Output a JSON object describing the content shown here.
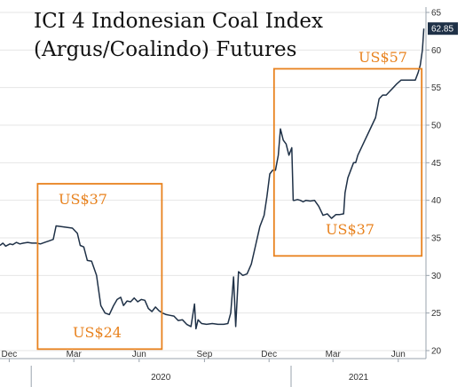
{
  "chart_data": {
    "type": "line",
    "title_lines": [
      "ICI 4 Indonesian Coal Index",
      "(Argus/Coalindo) Futures"
    ],
    "ylim": [
      20,
      65
    ],
    "yticks": [
      20,
      25,
      30,
      35,
      40,
      45,
      50,
      55,
      60,
      65
    ],
    "xlim": [
      "2019-11-18",
      "2021-07-10"
    ],
    "month_ticks": [
      {
        "date": "2019-12-01",
        "label": "Dec"
      },
      {
        "date": "2020-03-01",
        "label": "Mar"
      },
      {
        "date": "2020-06-01",
        "label": "Jun"
      },
      {
        "date": "2020-09-01",
        "label": "Sep"
      },
      {
        "date": "2020-12-01",
        "label": "Dec"
      },
      {
        "date": "2021-03-01",
        "label": "Mar"
      },
      {
        "date": "2021-06-01",
        "label": "Jun"
      }
    ],
    "year_labels": [
      {
        "label": "2020",
        "start": "2020-01-01",
        "end": "2020-12-31"
      },
      {
        "label": "2021",
        "start": "2021-01-01",
        "end": "2021-07-10"
      }
    ],
    "last_value": "62.85",
    "line_color": "#1f3147",
    "annotation_color": "#e8821e",
    "series": [
      {
        "x": [
          "2019-11-18",
          "2019-11-22",
          "2019-11-26",
          "2019-12-02",
          "2019-12-06",
          "2019-12-11",
          "2019-12-16",
          "2019-12-21",
          "2019-12-27",
          "2020-01-02",
          "2020-01-08",
          "2020-01-14",
          "2020-01-20",
          "2020-01-26",
          "2020-02-01",
          "2020-02-05",
          "2020-02-12",
          "2020-02-20",
          "2020-02-28",
          "2020-03-06",
          "2020-03-10",
          "2020-03-15",
          "2020-03-20",
          "2020-03-26",
          "2020-04-02",
          "2020-04-08",
          "2020-04-14",
          "2020-04-20",
          "2020-04-26",
          "2020-05-01",
          "2020-05-06",
          "2020-05-10",
          "2020-05-15",
          "2020-05-20",
          "2020-05-25",
          "2020-05-30",
          "2020-06-04",
          "2020-06-09",
          "2020-06-14",
          "2020-06-19",
          "2020-06-24",
          "2020-06-29",
          "2020-07-04",
          "2020-07-09",
          "2020-07-14",
          "2020-07-20",
          "2020-07-26",
          "2020-08-01",
          "2020-08-07",
          "2020-08-13",
          "2020-08-18",
          "2020-08-20",
          "2020-08-23",
          "2020-08-28",
          "2020-09-04",
          "2020-09-12",
          "2020-09-20",
          "2020-09-28",
          "2020-10-04",
          "2020-10-08",
          "2020-10-12",
          "2020-10-15",
          "2020-10-19",
          "2020-10-25",
          "2020-10-31",
          "2020-11-06",
          "2020-11-12",
          "2020-11-18",
          "2020-11-24",
          "2020-11-28",
          "2020-12-02",
          "2020-12-06",
          "2020-12-10",
          "2020-12-14",
          "2020-12-17",
          "2020-12-21",
          "2020-12-25",
          "2020-12-29",
          "2021-01-02",
          "2021-01-04",
          "2021-01-06",
          "2021-01-10",
          "2021-01-14",
          "2021-01-18",
          "2021-01-22",
          "2021-01-28",
          "2021-02-03",
          "2021-02-09",
          "2021-02-15",
          "2021-02-21",
          "2021-02-27",
          "2021-03-05",
          "2021-03-10",
          "2021-03-16",
          "2021-03-18",
          "2021-03-20",
          "2021-03-22",
          "2021-03-26",
          "2021-03-30",
          "2021-04-02",
          "2021-04-05",
          "2021-04-10",
          "2021-04-15",
          "2021-04-20",
          "2021-04-25",
          "2021-04-30",
          "2021-05-05",
          "2021-05-10",
          "2021-05-15",
          "2021-05-20",
          "2021-05-25",
          "2021-05-30",
          "2021-06-05",
          "2021-06-10",
          "2021-06-15",
          "2021-06-20",
          "2021-06-25",
          "2021-06-29",
          "2021-07-02",
          "2021-07-05",
          "2021-07-07"
        ],
        "y": [
          34.0,
          34.3,
          33.9,
          34.2,
          34.1,
          34.4,
          34.2,
          34.3,
          34.4,
          34.3,
          34.3,
          34.2,
          34.4,
          34.6,
          34.8,
          36.6,
          36.5,
          36.4,
          36.3,
          35.6,
          34.0,
          33.8,
          32.0,
          31.9,
          30.0,
          26.0,
          25.0,
          24.8,
          26.0,
          26.8,
          27.1,
          26.0,
          26.6,
          26.5,
          27.0,
          26.5,
          26.8,
          26.7,
          25.6,
          25.2,
          25.8,
          25.3,
          25.0,
          24.8,
          24.7,
          24.6,
          24.0,
          24.1,
          23.5,
          23.2,
          26.2,
          22.9,
          24.1,
          23.6,
          23.5,
          23.6,
          23.5,
          23.5,
          23.6,
          25.0,
          29.8,
          23.2,
          30.5,
          30.0,
          30.2,
          31.5,
          34.0,
          36.5,
          38.0,
          40.5,
          43.5,
          44.0,
          44.0,
          46.0,
          49.5,
          48.0,
          47.5,
          46.0,
          47.0,
          40.0,
          40.0,
          40.1,
          40.0,
          39.8,
          40.0,
          39.9,
          40.0,
          39.2,
          38.0,
          38.2,
          37.6,
          38.1,
          38.1,
          38.2,
          41.0,
          42.0,
          43.0,
          44.0,
          45.0,
          45.0,
          46.0,
          47.0,
          48.0,
          49.0,
          50.0,
          51.0,
          53.5,
          54.0,
          54.0,
          54.5,
          55.0,
          55.5,
          56.0,
          56.0,
          56.0,
          56.0,
          56.0,
          57.0,
          58.0,
          60.0,
          62.85
        ]
      }
    ],
    "annotations": [
      {
        "text": "US$37",
        "box": {
          "x0": "2020-01-10",
          "x1": "2020-07-03",
          "y0": 20.2,
          "y1": 42.2
        }
      },
      {
        "text": "US$24"
      },
      {
        "text": "US$57",
        "box": {
          "x0": "2020-12-08",
          "x1": "2021-07-04",
          "y0": 32.6,
          "y1": 57.5
        }
      },
      {
        "text": "US$37"
      }
    ]
  }
}
